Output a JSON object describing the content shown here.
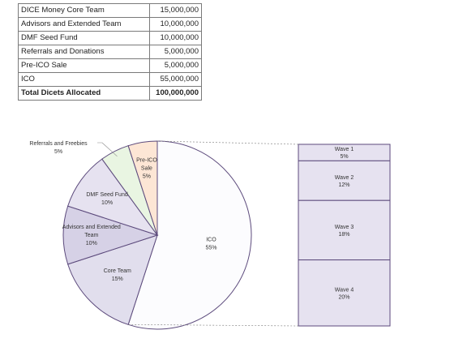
{
  "table": {
    "rows": [
      {
        "label": "DICE Money Core Team",
        "value": "15,000,000"
      },
      {
        "label": "Advisors and Extended Team",
        "value": "10,000,000"
      },
      {
        "label": "DMF Seed Fund",
        "value": "10,000,000"
      },
      {
        "label": "Referrals and Donations",
        "value": "5,000,000"
      },
      {
        "label": "Pre-ICO Sale",
        "value": "5,000,000"
      },
      {
        "label": "ICO",
        "value": "55,000,000"
      }
    ],
    "total": {
      "label": "Total Dicets Allocated",
      "value": "100,000,000"
    }
  },
  "chart_data": [
    {
      "type": "pie",
      "slices": [
        {
          "label": "ICO",
          "label_lines": [
            "ICO"
          ],
          "pct_label": "55%",
          "value": 55,
          "color": "#fcfcfe"
        },
        {
          "label": "Core Team",
          "label_lines": [
            "Core Team"
          ],
          "pct_label": "15%",
          "value": 15,
          "color": "#e1deed"
        },
        {
          "label": "Advisors and Extended Team",
          "label_lines": [
            "Advisors and Extended",
            "Team"
          ],
          "pct_label": "10%",
          "value": 10,
          "color": "#d6d1e6"
        },
        {
          "label": "DMF Seed Fund",
          "label_lines": [
            "DMF Seed Fund"
          ],
          "pct_label": "10%",
          "value": 10,
          "color": "#e6e2f0"
        },
        {
          "label": "Referrals and Freebies",
          "label_lines": [
            "Referrals and Freebies"
          ],
          "pct_label": "5%",
          "value": 5,
          "color": "#e9f5e2"
        },
        {
          "label": "Pre-ICO Sale",
          "label_lines": [
            "Pre-ICO",
            "Sale"
          ],
          "pct_label": "5%",
          "value": 5,
          "color": "#fde6d5"
        }
      ],
      "stroke_color": "#5c4a7c"
    },
    {
      "type": "bar",
      "orientation": "stacked-vertical",
      "categories": [
        "Wave 1",
        "Wave 2",
        "Wave 3",
        "Wave 4"
      ],
      "values": [
        5,
        12,
        18,
        20
      ],
      "pct_labels": [
        "5%",
        "12%",
        "18%",
        "20%"
      ],
      "fill_color": "#e6e2f0",
      "stroke_color": "#5c4a7c"
    }
  ]
}
